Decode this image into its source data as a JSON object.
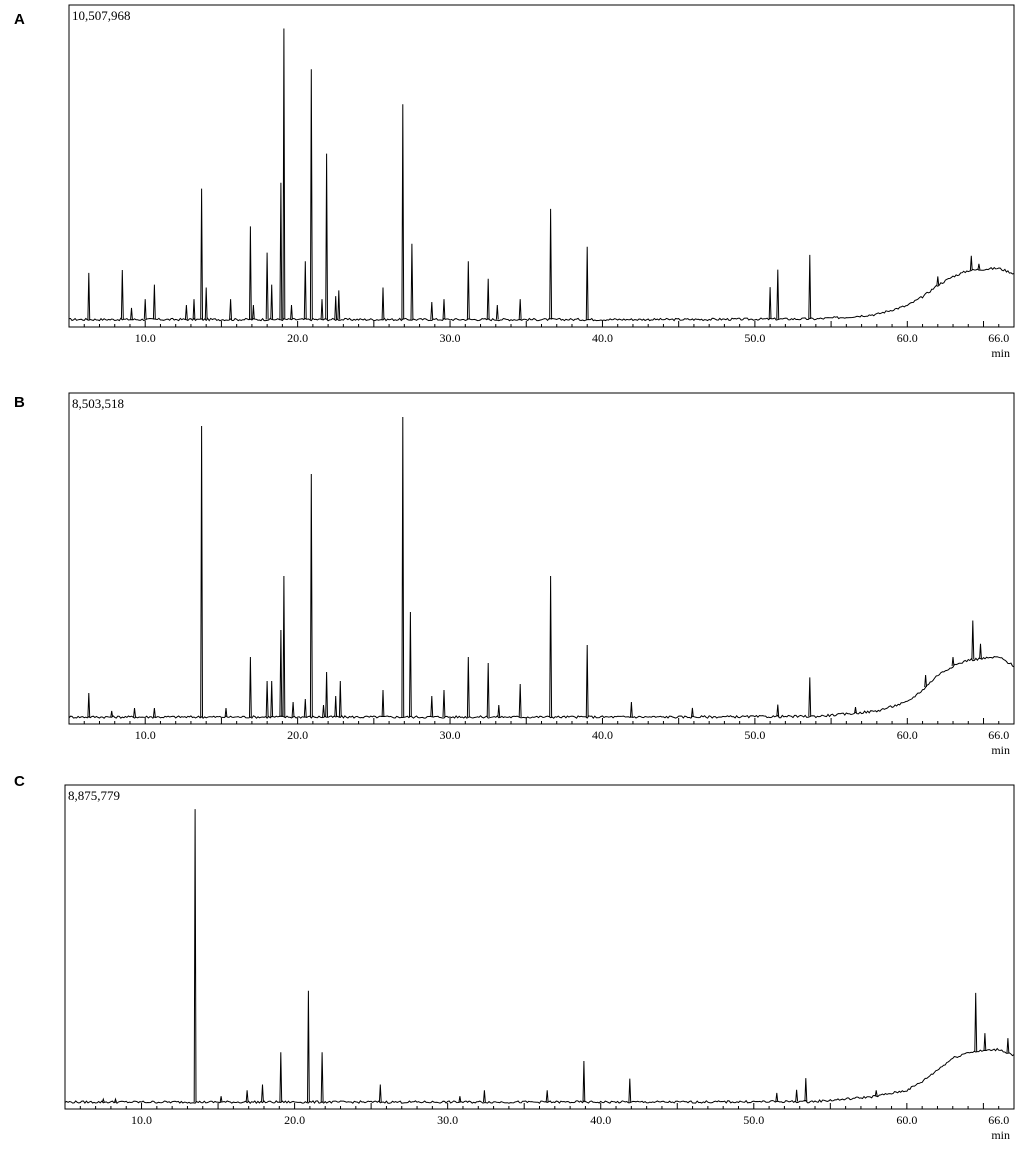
{
  "chart_data": [
    {
      "type": "line",
      "panel_label": "A",
      "intensity_max_label": "10,507,968",
      "x_unit": "min",
      "xlim": [
        5.0,
        67.0
      ],
      "x_ticks": [
        10,
        20,
        30,
        40,
        50,
        60,
        66
      ],
      "x_tick_labels": [
        "10.0",
        "20.0",
        "30.0",
        "40.0",
        "50.0",
        "60.0",
        "66.0"
      ],
      "baseline": {
        "x": [
          5,
          45,
          54,
          56,
          58,
          60,
          61,
          62,
          63,
          64,
          65,
          66,
          67
        ],
        "y": [
          0.012,
          0.012,
          0.014,
          0.02,
          0.03,
          0.06,
          0.09,
          0.13,
          0.16,
          0.18,
          0.185,
          0.188,
          0.17
        ]
      },
      "peaks": [
        {
          "rt": 6.3,
          "height": 0.16
        },
        {
          "rt": 8.5,
          "height": 0.17
        },
        {
          "rt": 9.1,
          "height": 0.04
        },
        {
          "rt": 10.0,
          "height": 0.07
        },
        {
          "rt": 10.6,
          "height": 0.12
        },
        {
          "rt": 12.7,
          "height": 0.05
        },
        {
          "rt": 13.2,
          "height": 0.07
        },
        {
          "rt": 13.7,
          "height": 0.45
        },
        {
          "rt": 14.0,
          "height": 0.11
        },
        {
          "rt": 15.6,
          "height": 0.07
        },
        {
          "rt": 16.9,
          "height": 0.32
        },
        {
          "rt": 17.1,
          "height": 0.05
        },
        {
          "rt": 18.0,
          "height": 0.23
        },
        {
          "rt": 18.3,
          "height": 0.12
        },
        {
          "rt": 18.9,
          "height": 0.47
        },
        {
          "rt": 19.1,
          "height": 1.0
        },
        {
          "rt": 19.6,
          "height": 0.05
        },
        {
          "rt": 20.5,
          "height": 0.2
        },
        {
          "rt": 20.9,
          "height": 0.86
        },
        {
          "rt": 21.6,
          "height": 0.07
        },
        {
          "rt": 21.9,
          "height": 0.57
        },
        {
          "rt": 22.5,
          "height": 0.08
        },
        {
          "rt": 22.7,
          "height": 0.1
        },
        {
          "rt": 25.6,
          "height": 0.11
        },
        {
          "rt": 26.9,
          "height": 0.74
        },
        {
          "rt": 27.5,
          "height": 0.26
        },
        {
          "rt": 28.8,
          "height": 0.06
        },
        {
          "rt": 29.6,
          "height": 0.07
        },
        {
          "rt": 31.2,
          "height": 0.2
        },
        {
          "rt": 32.5,
          "height": 0.14
        },
        {
          "rt": 33.1,
          "height": 0.05
        },
        {
          "rt": 34.6,
          "height": 0.07
        },
        {
          "rt": 36.6,
          "height": 0.38
        },
        {
          "rt": 39.0,
          "height": 0.25
        },
        {
          "rt": 51.0,
          "height": 0.11
        },
        {
          "rt": 51.5,
          "height": 0.17
        },
        {
          "rt": 53.6,
          "height": 0.22
        },
        {
          "rt": 62.0,
          "height": 0.03
        },
        {
          "rt": 64.2,
          "height": 0.05
        },
        {
          "rt": 64.7,
          "height": 0.02
        }
      ]
    },
    {
      "type": "line",
      "panel_label": "B",
      "intensity_max_label": "8,503,518",
      "x_unit": "min",
      "xlim": [
        5.0,
        67.0
      ],
      "x_ticks": [
        10,
        20,
        30,
        40,
        50,
        60,
        66
      ],
      "x_tick_labels": [
        "10.0",
        "20.0",
        "30.0",
        "40.0",
        "50.0",
        "60.0",
        "66.0"
      ],
      "baseline": {
        "x": [
          5,
          45,
          54,
          56,
          58,
          60,
          61,
          62,
          63,
          64,
          65,
          66,
          67
        ],
        "y": [
          0.01,
          0.01,
          0.012,
          0.02,
          0.03,
          0.06,
          0.1,
          0.15,
          0.18,
          0.2,
          0.205,
          0.21,
          0.18
        ]
      },
      "peaks": [
        {
          "rt": 6.3,
          "height": 0.08
        },
        {
          "rt": 7.8,
          "height": 0.02
        },
        {
          "rt": 9.3,
          "height": 0.03
        },
        {
          "rt": 10.6,
          "height": 0.03
        },
        {
          "rt": 13.7,
          "height": 0.97
        },
        {
          "rt": 15.3,
          "height": 0.03
        },
        {
          "rt": 16.9,
          "height": 0.2
        },
        {
          "rt": 18.0,
          "height": 0.12
        },
        {
          "rt": 18.3,
          "height": 0.12
        },
        {
          "rt": 18.9,
          "height": 0.29
        },
        {
          "rt": 19.1,
          "height": 0.47
        },
        {
          "rt": 19.7,
          "height": 0.05
        },
        {
          "rt": 20.5,
          "height": 0.06
        },
        {
          "rt": 20.9,
          "height": 0.81
        },
        {
          "rt": 21.7,
          "height": 0.04
        },
        {
          "rt": 21.9,
          "height": 0.15
        },
        {
          "rt": 22.5,
          "height": 0.07
        },
        {
          "rt": 22.8,
          "height": 0.12
        },
        {
          "rt": 25.6,
          "height": 0.09
        },
        {
          "rt": 26.9,
          "height": 1.0
        },
        {
          "rt": 27.4,
          "height": 0.35
        },
        {
          "rt": 28.8,
          "height": 0.07
        },
        {
          "rt": 29.6,
          "height": 0.09
        },
        {
          "rt": 31.2,
          "height": 0.2
        },
        {
          "rt": 32.5,
          "height": 0.18
        },
        {
          "rt": 33.2,
          "height": 0.04
        },
        {
          "rt": 34.6,
          "height": 0.11
        },
        {
          "rt": 36.6,
          "height": 0.47
        },
        {
          "rt": 39.0,
          "height": 0.24
        },
        {
          "rt": 41.9,
          "height": 0.05
        },
        {
          "rt": 45.9,
          "height": 0.03
        },
        {
          "rt": 51.5,
          "height": 0.04
        },
        {
          "rt": 53.6,
          "height": 0.13
        },
        {
          "rt": 56.6,
          "height": 0.02
        },
        {
          "rt": 61.2,
          "height": 0.04
        },
        {
          "rt": 63.0,
          "height": 0.03
        },
        {
          "rt": 64.3,
          "height": 0.13
        },
        {
          "rt": 64.8,
          "height": 0.05
        }
      ]
    },
    {
      "type": "line",
      "panel_label": "C",
      "intensity_max_label": "8,875,779",
      "x_unit": "min",
      "xlim": [
        5.0,
        67.0
      ],
      "x_ticks": [
        10,
        20,
        30,
        40,
        50,
        60,
        66
      ],
      "x_tick_labels": [
        "10.0",
        "20.0",
        "30.0",
        "40.0",
        "50.0",
        "60.0",
        "66.0"
      ],
      "baseline": {
        "x": [
          5,
          45,
          54,
          56,
          58,
          60,
          61,
          62,
          63,
          64,
          65,
          66,
          67
        ],
        "y": [
          0.01,
          0.01,
          0.012,
          0.02,
          0.03,
          0.05,
          0.08,
          0.12,
          0.16,
          0.18,
          0.185,
          0.19,
          0.17
        ]
      },
      "peaks": [
        {
          "rt": 7.5,
          "height": 0.01
        },
        {
          "rt": 8.3,
          "height": 0.01
        },
        {
          "rt": 13.5,
          "height": 1.0
        },
        {
          "rt": 15.2,
          "height": 0.02
        },
        {
          "rt": 16.9,
          "height": 0.04
        },
        {
          "rt": 17.9,
          "height": 0.06
        },
        {
          "rt": 19.1,
          "height": 0.17
        },
        {
          "rt": 20.9,
          "height": 0.38
        },
        {
          "rt": 21.8,
          "height": 0.17
        },
        {
          "rt": 25.6,
          "height": 0.06
        },
        {
          "rt": 30.8,
          "height": 0.02
        },
        {
          "rt": 32.4,
          "height": 0.04
        },
        {
          "rt": 36.5,
          "height": 0.04
        },
        {
          "rt": 38.9,
          "height": 0.14
        },
        {
          "rt": 41.9,
          "height": 0.08
        },
        {
          "rt": 51.5,
          "height": 0.03
        },
        {
          "rt": 52.8,
          "height": 0.04
        },
        {
          "rt": 53.4,
          "height": 0.08
        },
        {
          "rt": 58.0,
          "height": 0.02
        },
        {
          "rt": 64.5,
          "height": 0.2
        },
        {
          "rt": 65.1,
          "height": 0.06
        },
        {
          "rt": 66.6,
          "height": 0.05
        }
      ]
    }
  ]
}
